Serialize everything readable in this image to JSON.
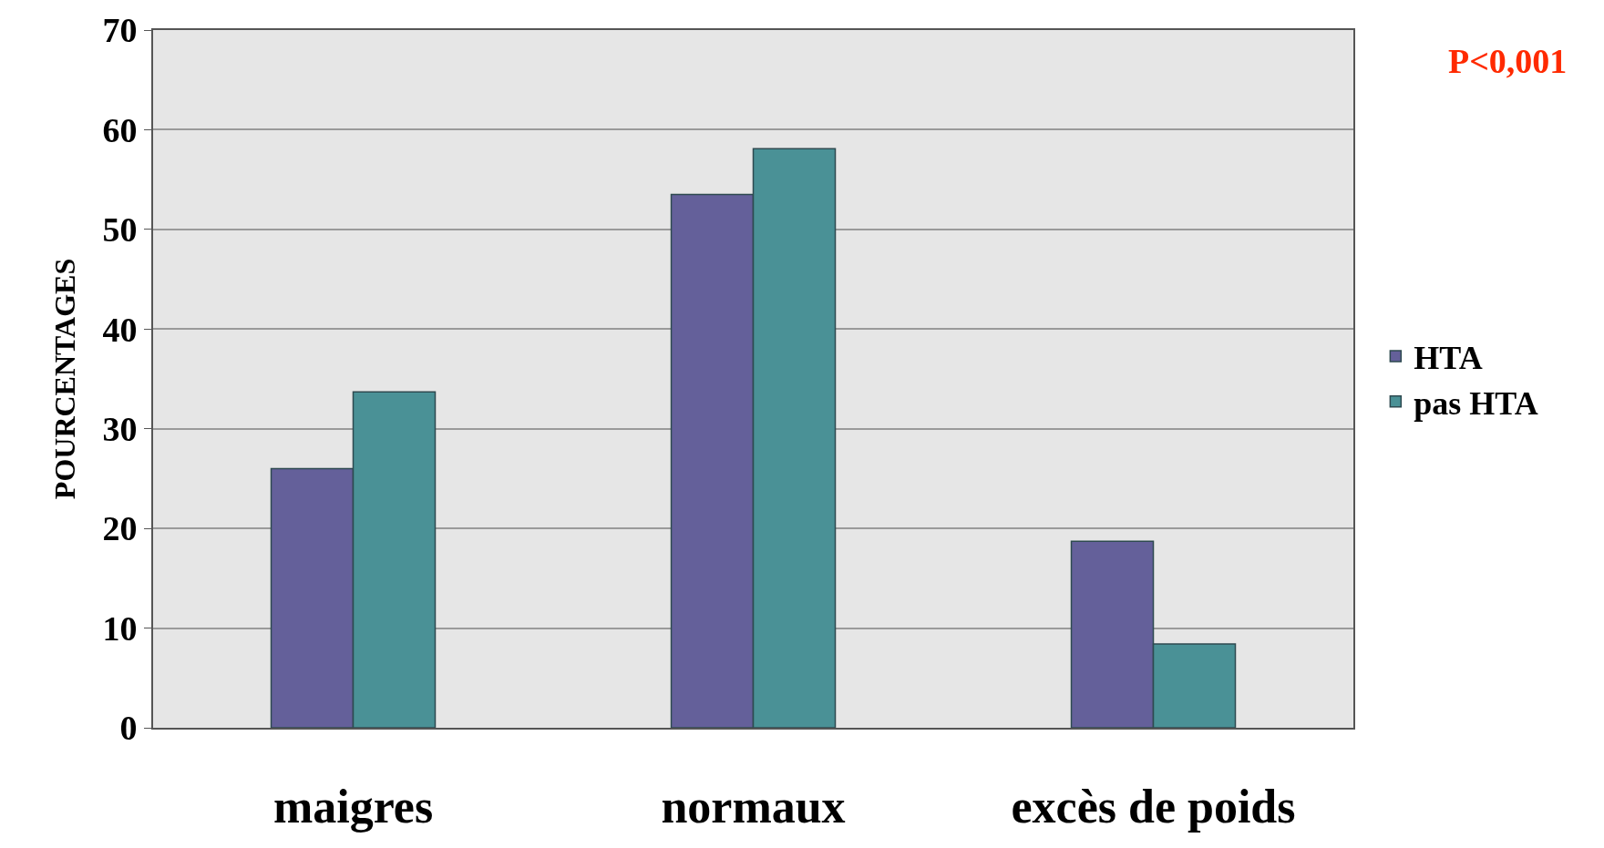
{
  "chart_data": {
    "type": "bar",
    "ylabel": "POURCENTAGES",
    "categories": [
      "maigres",
      "normaux",
      "excès de poids"
    ],
    "series": [
      {
        "name": "HTA",
        "color": "#64609a",
        "values": [
          26,
          53.5,
          18.7
        ]
      },
      {
        "name": "pas HTA",
        "color": "#4a9196",
        "values": [
          33.7,
          58.1,
          8.4
        ]
      }
    ],
    "ylim": [
      0,
      70
    ],
    "yticks": [
      0,
      10,
      20,
      30,
      40,
      50,
      60,
      70
    ],
    "grid": "y",
    "legend": "right",
    "annotations": [
      "P<0,001"
    ]
  }
}
